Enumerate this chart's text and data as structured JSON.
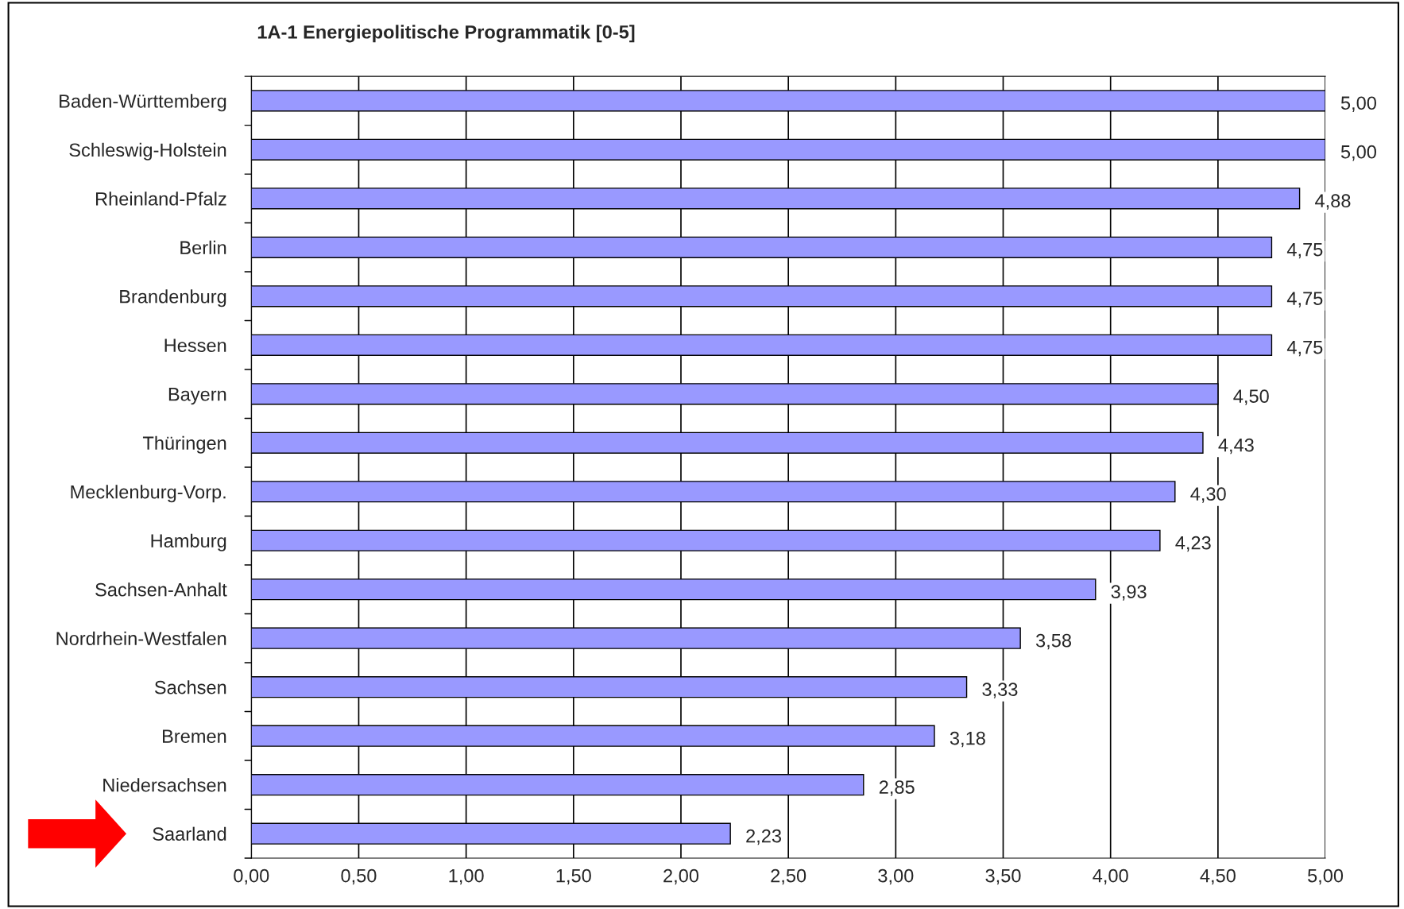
{
  "chart_data": {
    "type": "bar",
    "orientation": "horizontal",
    "title": "1A-1 Energiepolitische Programmatik [0-5]",
    "categories": [
      "Baden-Württemberg",
      "Schleswig-Holstein",
      "Rheinland-Pfalz",
      "Berlin",
      "Brandenburg",
      "Hessen",
      "Bayern",
      "Thüringen",
      "Mecklenburg-Vorp.",
      "Hamburg",
      "Sachsen-Anhalt",
      "Nordrhein-Westfalen",
      "Sachsen",
      "Bremen",
      "Niedersachsen",
      "Saarland"
    ],
    "values": [
      5.0,
      5.0,
      4.88,
      4.75,
      4.75,
      4.75,
      4.5,
      4.43,
      4.3,
      4.23,
      3.93,
      3.58,
      3.33,
      3.18,
      2.85,
      2.23
    ],
    "value_labels": [
      "5,00",
      "5,00",
      "4,88",
      "4,75",
      "4,75",
      "4,75",
      "4,50",
      "4,43",
      "4,30",
      "4,23",
      "3,93",
      "3,58",
      "3,33",
      "3,18",
      "2,85",
      "2,23"
    ],
    "color": "#9999ff",
    "xlim": [
      0,
      5
    ],
    "xticks": [
      {
        "value": 0,
        "label": "0,00"
      },
      {
        "value": 0.5,
        "label": "0,50"
      },
      {
        "value": 1,
        "label": "1,00"
      },
      {
        "value": 1.5,
        "label": "1,50"
      },
      {
        "value": 2,
        "label": "2,00"
      },
      {
        "value": 2.5,
        "label": "2,50"
      },
      {
        "value": 3,
        "label": "3,00"
      },
      {
        "value": 3.5,
        "label": "3,50"
      },
      {
        "value": 4,
        "label": "4,00"
      },
      {
        "value": 4.5,
        "label": "4,50"
      },
      {
        "value": 5,
        "label": "5,00"
      }
    ],
    "grid": "x",
    "legend": false
  }
}
